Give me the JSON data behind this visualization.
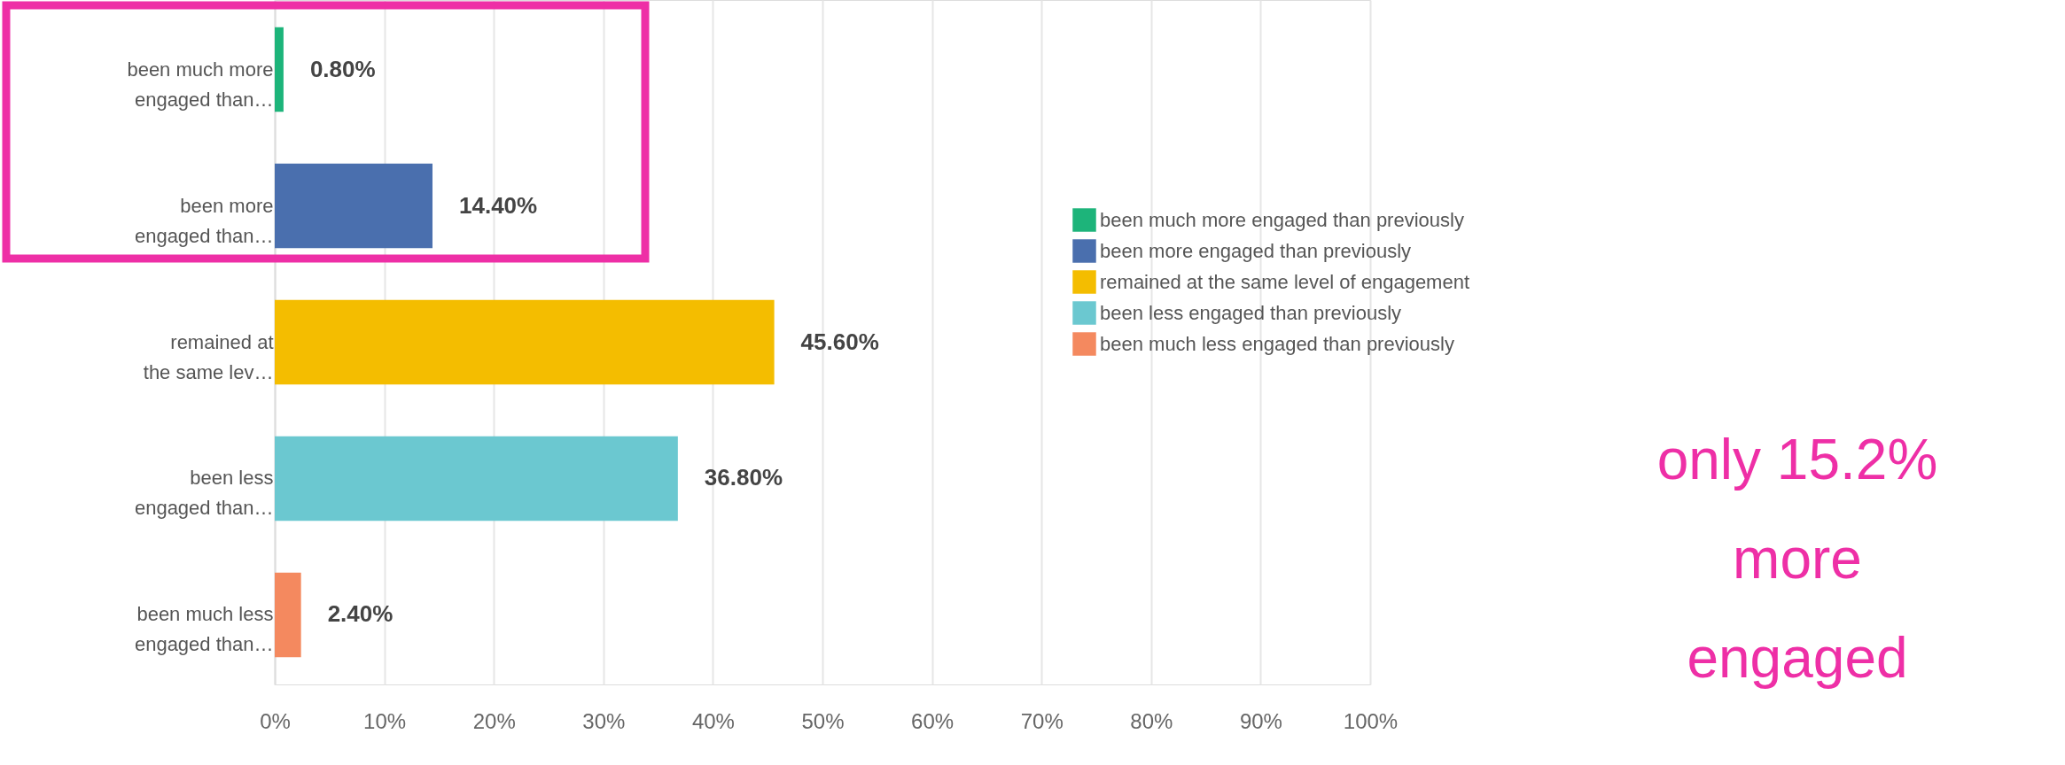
{
  "chart_data": {
    "type": "bar",
    "orientation": "horizontal",
    "categories": [
      "been much more engaged than…",
      "been more engaged than…",
      "remained at the same lev…",
      "been less engaged than…",
      "been much less engaged than…"
    ],
    "series": [
      {
        "name": "been much more engaged than previously",
        "color": "#1db47a",
        "values": [
          0.8,
          null,
          null,
          null,
          null
        ],
        "value_labels": [
          "0.80%",
          null,
          null,
          null,
          null
        ]
      },
      {
        "name": "been more engaged than previously",
        "color": "#4a6fae",
        "values": [
          null,
          14.4,
          null,
          null,
          null
        ],
        "value_labels": [
          null,
          "14.40%",
          null,
          null,
          null
        ]
      },
      {
        "name": "remained at the same level of engagement",
        "color": "#f4bd00",
        "values": [
          null,
          null,
          45.6,
          null,
          null
        ],
        "value_labels": [
          null,
          null,
          "45.60%",
          null,
          null
        ]
      },
      {
        "name": "been less engaged than previously",
        "color": "#6bc8d0",
        "values": [
          null,
          null,
          null,
          36.8,
          null
        ],
        "value_labels": [
          null,
          null,
          null,
          "36.80%",
          null
        ]
      },
      {
        "name": "been much less engaged than previously",
        "color": "#f4895f",
        "values": [
          null,
          null,
          null,
          null,
          2.4
        ],
        "value_labels": [
          null,
          null,
          null,
          null,
          "2.40%"
        ]
      }
    ],
    "xlim": [
      0,
      100
    ],
    "xticks": [
      {
        "value": 0,
        "label": "0%"
      },
      {
        "value": 10,
        "label": "10%"
      },
      {
        "value": 20,
        "label": "20%"
      },
      {
        "value": 30,
        "label": "30%"
      },
      {
        "value": 40,
        "label": "40%"
      },
      {
        "value": 50,
        "label": "50%"
      },
      {
        "value": 60,
        "label": "60%"
      },
      {
        "value": 70,
        "label": "70%"
      },
      {
        "value": 80,
        "label": "80%"
      },
      {
        "value": 90,
        "label": "90%"
      },
      {
        "value": 100,
        "label": "100%"
      }
    ],
    "grid": "x",
    "legend": "right",
    "annotations": [
      "only 15.2% more engaged"
    ]
  }
}
